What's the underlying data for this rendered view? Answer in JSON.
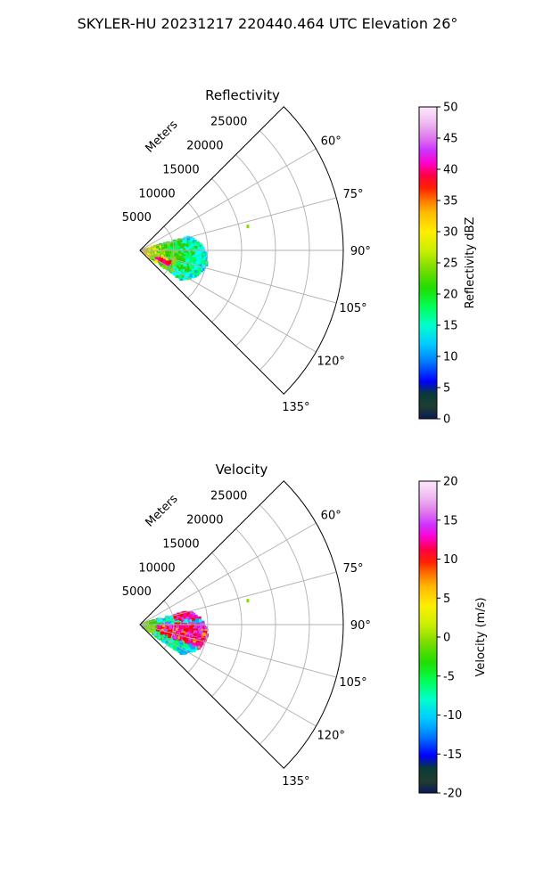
{
  "suptitle": "SKYLER-HU  20231217  220440.464 UTC Elevation 26°",
  "chart_data": [
    {
      "type": "heatmap",
      "projection": "polar-sector",
      "title": "Reflectivity",
      "radial_label": "Meters",
      "radial_ticks": [
        5000,
        10000,
        15000,
        20000,
        25000
      ],
      "radial_range": [
        0,
        30000
      ],
      "angle_ticks": [
        "60°",
        "75°",
        "90°",
        "105°",
        "120°",
        "135°"
      ],
      "angle_range_deg": [
        45,
        135
      ],
      "grid": true,
      "colorbar": {
        "label": "Reflectivity dBZ",
        "range": [
          0,
          50
        ],
        "ticks": [
          0,
          5,
          10,
          15,
          20,
          25,
          30,
          35,
          40,
          45,
          50
        ]
      },
      "colormap": [
        "#0b1f5f",
        "#1f3d2f",
        "#0000ff",
        "#00aaff",
        "#00ffff",
        "#00ff66",
        "#33cc00",
        "#88dd00",
        "#ffee00",
        "#ffaa00",
        "#ff0000",
        "#ff00aa",
        "#cc44ff",
        "#ffaaff",
        "#ffeeff"
      ],
      "echo_region": {
        "range_m": [
          0,
          10000
        ],
        "azimuth_deg": [
          75,
          125
        ],
        "dominant_values_dbz": [
          15,
          30
        ],
        "peak_dbz": 37
      }
    },
    {
      "type": "heatmap",
      "projection": "polar-sector",
      "title": "Velocity",
      "radial_label": "Meters",
      "radial_ticks": [
        5000,
        10000,
        15000,
        20000,
        25000
      ],
      "radial_range": [
        0,
        30000
      ],
      "angle_ticks": [
        "60°",
        "75°",
        "90°",
        "105°",
        "120°",
        "135°"
      ],
      "angle_range_deg": [
        45,
        135
      ],
      "grid": true,
      "colorbar": {
        "label": "Velocity (m/s)",
        "range": [
          -20,
          20
        ],
        "ticks": [
          -20,
          -15,
          -10,
          -5,
          0,
          5,
          10,
          15,
          20
        ]
      },
      "colormap": [
        "#0b1f5f",
        "#1f3d2f",
        "#0000ff",
        "#00aaff",
        "#00ffff",
        "#00ff66",
        "#33cc00",
        "#88dd00",
        "#ffee00",
        "#ffaa00",
        "#ff0000",
        "#ff00aa",
        "#cc44ff",
        "#ffaaff",
        "#ffeeff"
      ],
      "echo_region": {
        "range_m": [
          0,
          10000
        ],
        "azimuth_deg": [
          75,
          125
        ],
        "dominant_values_ms": [
          -10,
          12
        ]
      }
    }
  ]
}
